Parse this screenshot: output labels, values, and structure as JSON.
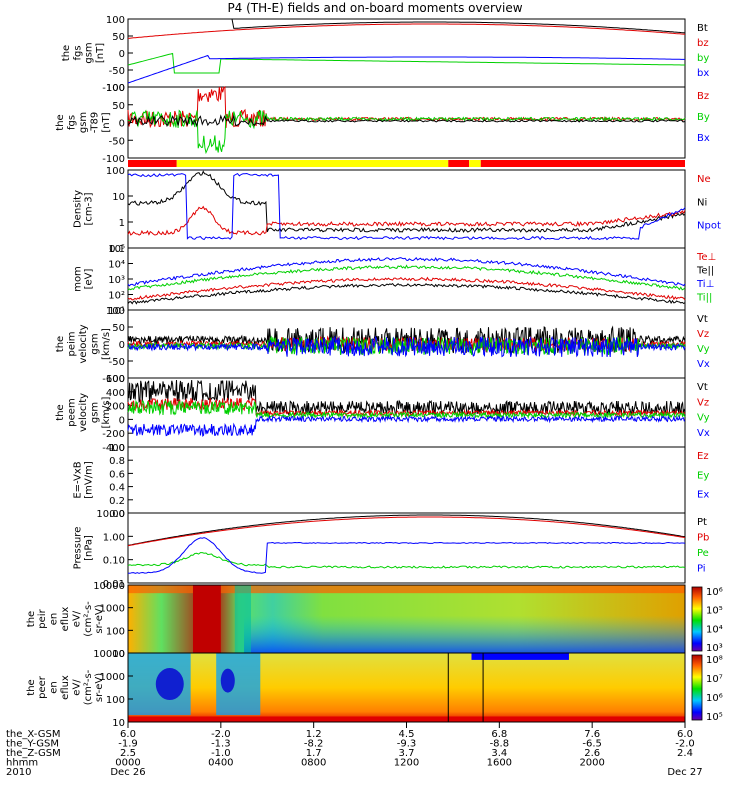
{
  "title": "P4 (TH-E) fields and on-board moments overview",
  "colors": {
    "black": "#000000",
    "red": "#e00000",
    "green": "#00d000",
    "blue": "#0000ff",
    "yellow": "#ffff00"
  },
  "chart_data": [
    {
      "type": "line",
      "id": "fgs",
      "ylabel": [
        "the",
        "fgs",
        "gsm",
        "[nT]"
      ],
      "yticks": [
        "100",
        "50",
        "0",
        "-50",
        "-100"
      ],
      "series": [
        {
          "name": "Bt",
          "color": "#000000"
        },
        {
          "name": "bz",
          "color": "#e00000"
        },
        {
          "name": "by",
          "color": "#00d000"
        },
        {
          "name": "bx",
          "color": "#0000ff"
        }
      ]
    },
    {
      "type": "line",
      "id": "fgs-dtrend",
      "ylabel": [
        "the",
        "fgs",
        "gsm",
        "-T89",
        "[nT]"
      ],
      "yticks": [
        "100",
        "50",
        "0",
        "-50",
        "-100"
      ],
      "series": [
        {
          "name": "Bz",
          "color": "#e00000"
        },
        {
          "name": "By",
          "color": "#00d000"
        },
        {
          "name": "Bx",
          "color": "#0000ff"
        }
      ]
    },
    {
      "type": "bar",
      "id": "mode-bar",
      "segments": [
        {
          "from_hr": 0.0,
          "to_hr": 2.1,
          "color": "#ff0000"
        },
        {
          "from_hr": 2.1,
          "to_hr": 13.8,
          "color": "#ffff00"
        },
        {
          "from_hr": 13.8,
          "to_hr": 14.7,
          "color": "#ff0000"
        },
        {
          "from_hr": 14.7,
          "to_hr": 15.2,
          "color": "#ffff00"
        },
        {
          "from_hr": 15.2,
          "to_hr": 24.0,
          "color": "#ff0000"
        }
      ]
    },
    {
      "type": "line",
      "id": "density",
      "ylabel": [
        "Density",
        "[cm-3]"
      ],
      "yticks": [
        "100",
        "10",
        "1",
        "0.1"
      ],
      "log": true,
      "series": [
        {
          "name": "Ne",
          "color": "#e00000"
        },
        {
          "name": "Ni",
          "color": "#000000"
        },
        {
          "name": "Npot",
          "color": "#0000ff"
        }
      ]
    },
    {
      "type": "line",
      "id": "temperature",
      "ylabel": [
        "mom",
        "[eV]"
      ],
      "yticks": [
        "10⁵",
        "10⁴",
        "10³",
        "10²",
        "10¹"
      ],
      "log": true,
      "series": [
        {
          "name": "Te⊥",
          "color": "#e00000"
        },
        {
          "name": "Te||",
          "color": "#000000"
        },
        {
          "name": "Ti⊥",
          "color": "#0000ff"
        },
        {
          "name": "Ti||",
          "color": "#00d000"
        }
      ]
    },
    {
      "type": "line",
      "id": "peim-velocity",
      "ylabel": [
        "the",
        "peim",
        "velocity",
        "gsm",
        "[km/s]"
      ],
      "yticks": [
        "100",
        "50",
        "0",
        "-50",
        "-100"
      ],
      "series": [
        {
          "name": "Vt",
          "color": "#000000"
        },
        {
          "name": "Vz",
          "color": "#e00000"
        },
        {
          "name": "Vy",
          "color": "#00d000"
        },
        {
          "name": "Vx",
          "color": "#0000ff"
        }
      ]
    },
    {
      "type": "line",
      "id": "peem-velocity",
      "ylabel": [
        "the",
        "peem",
        "velocity",
        "gsm",
        "[km/s]"
      ],
      "yticks": [
        "600",
        "400",
        "200",
        "0",
        "-200",
        "-400"
      ],
      "series": [
        {
          "name": "Vt",
          "color": "#000000"
        },
        {
          "name": "Vz",
          "color": "#e00000"
        },
        {
          "name": "Vy",
          "color": "#00d000"
        },
        {
          "name": "Vx",
          "color": "#0000ff"
        }
      ]
    },
    {
      "type": "line",
      "id": "efield",
      "ylabel": [
        "E=-VxB",
        "[mV/m]"
      ],
      "yticks": [
        "1.0",
        "0.8",
        "0.6",
        "0.4",
        "0.2",
        "0.0"
      ],
      "series": [
        {
          "name": "Ez",
          "color": "#e00000"
        },
        {
          "name": "Ey",
          "color": "#00d000"
        },
        {
          "name": "Ex",
          "color": "#0000ff"
        }
      ]
    },
    {
      "type": "line",
      "id": "pressure",
      "ylabel": [
        "Pressure",
        "[nPa]"
      ],
      "yticks": [
        "10.00",
        "1.00",
        "0.10",
        "0.01"
      ],
      "log": true,
      "series": [
        {
          "name": "Pt",
          "color": "#000000"
        },
        {
          "name": "Pb",
          "color": "#e00000"
        },
        {
          "name": "Pe",
          "color": "#00d000"
        },
        {
          "name": "Pi",
          "color": "#0000ff"
        }
      ]
    },
    {
      "type": "heatmap",
      "id": "peir-spectrogram",
      "ylabel": [
        "the",
        "peir",
        "en",
        "eflux",
        "eV/",
        "(cm²-s-",
        "sr-eV)"
      ],
      "yticks": [
        "10000",
        "1000",
        "100",
        "10"
      ],
      "colorbar_ticks": [
        "10⁶",
        "10⁵",
        "10⁴",
        "10³"
      ]
    },
    {
      "type": "heatmap",
      "id": "peer-spectrogram",
      "ylabel": [
        "the",
        "peer",
        "en",
        "eflux",
        "eV/",
        "(cm²-s-",
        "sr-eV)"
      ],
      "yticks": [
        "10000",
        "1000",
        "100",
        "10"
      ],
      "colorbar_ticks": [
        "10⁸",
        "10⁷",
        "10⁶",
        "10⁵"
      ]
    }
  ],
  "xaxis": {
    "rows": [
      {
        "label": "the_X-GSM",
        "values": [
          "6.0",
          "-2.0",
          "1.2",
          "4.5",
          "6.8",
          "7.6",
          "6.0"
        ]
      },
      {
        "label": "the_Y-GSM",
        "values": [
          "-1.9",
          "-1.3",
          "-8.2",
          "-9.3",
          "-8.8",
          "-6.5",
          "-2.0"
        ]
      },
      {
        "label": "the_Z-GSM",
        "values": [
          "2.5",
          "-1.0",
          "1.7",
          "3.7",
          "3.4",
          "2.6",
          "2.4"
        ]
      },
      {
        "label": "hhmm",
        "values": [
          "0000",
          "0400",
          "0800",
          "1200",
          "1600",
          "2000",
          ""
        ]
      },
      {
        "label": "2010",
        "values": [
          "Dec 26",
          "",
          "",
          "",
          "",
          "",
          "Dec 27"
        ]
      }
    ],
    "tick_hours": [
      0,
      4,
      8,
      12,
      16,
      20,
      24
    ]
  }
}
